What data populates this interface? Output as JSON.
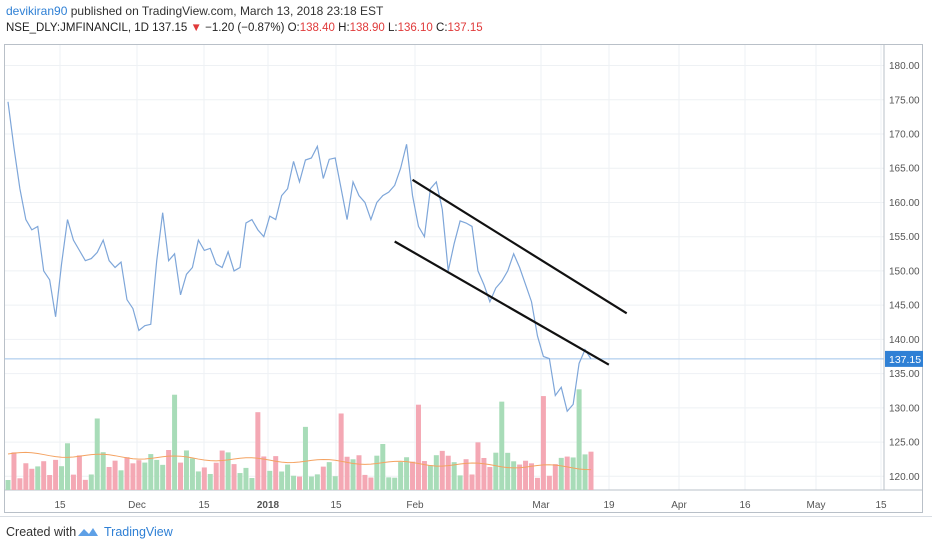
{
  "header": {
    "user": "devikiran90",
    "published": "published on TradingView.com, March 13, 2018 23:18 EST"
  },
  "ohlc": {
    "symbol": "NSE_DLY:JMFINANCIL, 1D",
    "last": "137.15",
    "change": "−1.20 (−0.87%)",
    "o_label": "O:",
    "o_val": "138.40",
    "h_label": "H:",
    "h_val": "138.90",
    "l_label": "L:",
    "l_val": "136.10",
    "c_label": "C:",
    "c_val": "137.15",
    "down_color": "#e03a3a"
  },
  "footer": {
    "created": "Created with",
    "brand": "TradingView"
  },
  "chart_data": {
    "type": "line",
    "y_ticks": [
      "180.00",
      "175.00",
      "170.00",
      "165.00",
      "160.00",
      "155.00",
      "150.00",
      "145.00",
      "140.00",
      "135.00",
      "130.00",
      "125.00",
      "120.00"
    ],
    "ylim": [
      118,
      183
    ],
    "x_ticks": [
      "15",
      "Dec",
      "15",
      "2018",
      "15",
      "Feb",
      "Mar",
      "19",
      "Apr",
      "16",
      "May",
      "15"
    ],
    "last_price": "137.15",
    "price_color": "#7ea6d9",
    "last_color": "#2f80d5",
    "ma_color": "#f4a261",
    "vol_up_color": "#a8dcb8",
    "vol_down_color": "#f4a8b4",
    "series": [
      {
        "values": [
          174.7,
          168,
          162,
          157.5,
          156,
          156.5,
          150,
          148.7,
          143.3,
          151,
          157.5,
          154.5,
          153,
          151.5,
          151.8,
          152.7,
          154.5,
          151.5,
          150.5,
          151.3,
          145.8,
          144.5,
          141.3,
          142,
          142.2,
          151.5,
          158.5,
          151.5,
          152.5,
          146.5,
          149.5,
          150.5,
          154.5,
          153,
          153.3,
          151,
          150.5,
          152.8,
          150,
          150.5,
          157,
          157.5,
          156,
          155,
          158,
          157.5,
          161,
          162,
          166,
          163,
          166.2,
          166.5,
          168.2,
          163.5,
          166.3,
          166.5,
          162,
          157.5,
          163,
          161,
          160,
          157.5,
          160,
          161,
          161.5,
          162.5,
          165,
          168.5,
          161,
          156.5,
          155,
          162,
          163,
          159,
          150,
          154,
          157.3,
          157,
          156.5,
          150,
          148,
          145.5,
          147.5,
          148.5,
          150,
          152.5,
          150.5,
          148,
          145.5,
          140.5,
          137.5,
          137.2,
          131.8,
          133,
          129.5,
          130.5,
          136.5,
          138.5,
          137.15
        ]
      }
    ],
    "volume_up": [
      0,
      0,
      0,
      0,
      0,
      0,
      0,
      0,
      0,
      0,
      1,
      0,
      0,
      0,
      0,
      1,
      0,
      0,
      0,
      0,
      0,
      0,
      0,
      0,
      0,
      0,
      0,
      0,
      1,
      0,
      0,
      0,
      0,
      0,
      0,
      0,
      0,
      0,
      0,
      0,
      0,
      0,
      1,
      0,
      0,
      0,
      0,
      0,
      0,
      0,
      1,
      0,
      0,
      0,
      0,
      0,
      1,
      0,
      0,
      0,
      0,
      0,
      0,
      1,
      0,
      0,
      0,
      0,
      0,
      1,
      0,
      0,
      0,
      0,
      0,
      0,
      0,
      0,
      0,
      1,
      0,
      0,
      0,
      1,
      0,
      0,
      0,
      0,
      0,
      0,
      1,
      0,
      0,
      0,
      0,
      0,
      1
    ],
    "trendlines": [
      {
        "from": [
          68,
          163.3
        ],
        "to": [
          104,
          143.8
        ]
      },
      {
        "from": [
          65,
          154.3
        ],
        "to": [
          101,
          136.3
        ]
      }
    ]
  }
}
